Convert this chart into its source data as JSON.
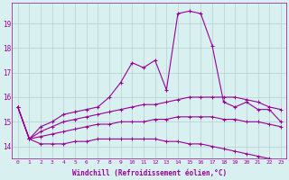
{
  "x": [
    0,
    1,
    2,
    3,
    4,
    5,
    6,
    7,
    8,
    9,
    10,
    11,
    12,
    13,
    14,
    15,
    16,
    17,
    18,
    19,
    20,
    21,
    22,
    23
  ],
  "line1": [
    15.6,
    14.3,
    14.8,
    15.0,
    15.3,
    15.4,
    15.5,
    15.6,
    16.0,
    16.6,
    17.4,
    17.2,
    17.5,
    16.3,
    19.4,
    19.5,
    19.4,
    18.1,
    15.8,
    15.6,
    15.8,
    15.5,
    15.5,
    15.0
  ],
  "line2": [
    15.6,
    14.3,
    14.6,
    14.8,
    15.0,
    15.1,
    15.2,
    15.3,
    15.4,
    15.5,
    15.6,
    15.7,
    15.7,
    15.8,
    15.9,
    16.0,
    16.0,
    16.0,
    16.0,
    16.0,
    15.9,
    15.8,
    15.6,
    15.5
  ],
  "line3": [
    15.6,
    14.3,
    14.4,
    14.5,
    14.6,
    14.7,
    14.8,
    14.9,
    14.9,
    15.0,
    15.0,
    15.0,
    15.1,
    15.1,
    15.2,
    15.2,
    15.2,
    15.2,
    15.1,
    15.1,
    15.0,
    15.0,
    14.9,
    14.8
  ],
  "line4": [
    15.6,
    14.3,
    14.1,
    14.1,
    14.1,
    14.2,
    14.2,
    14.3,
    14.3,
    14.3,
    14.3,
    14.3,
    14.3,
    14.2,
    14.2,
    14.1,
    14.1,
    14.0,
    13.9,
    13.8,
    13.7,
    13.6,
    13.5,
    13.4
  ],
  "color": "#990099",
  "bg_color": "#d8f0f0",
  "grid_color": "#b8d0d0",
  "xlabel": "Windchill (Refroidissement éolien,°C)",
  "xlim": [
    -0.5,
    23.5
  ],
  "ylim": [
    13.5,
    19.85
  ],
  "yticks": [
    14,
    15,
    16,
    17,
    18,
    19
  ],
  "xticks": [
    0,
    1,
    2,
    3,
    4,
    5,
    6,
    7,
    8,
    9,
    10,
    11,
    12,
    13,
    14,
    15,
    16,
    17,
    18,
    19,
    20,
    21,
    22,
    23
  ]
}
